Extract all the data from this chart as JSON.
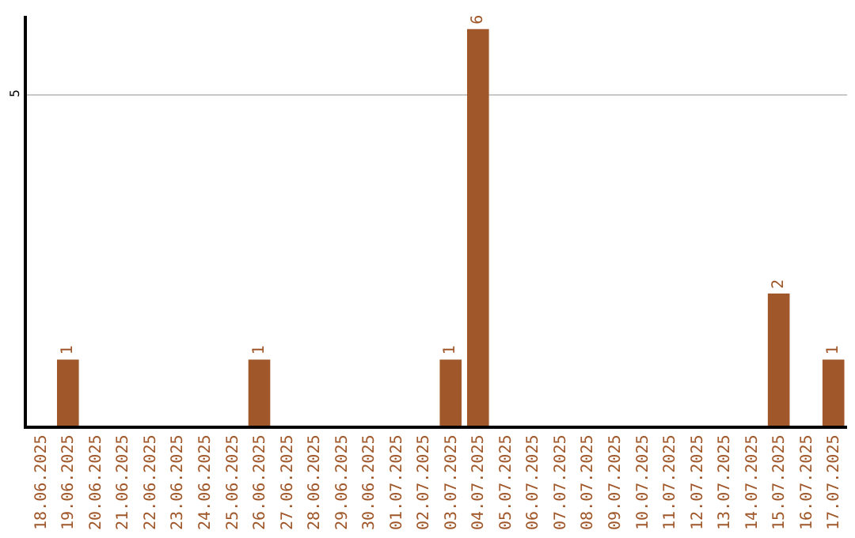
{
  "chart_data": {
    "type": "bar",
    "categories": [
      "18.06.2025",
      "19.06.2025",
      "20.06.2025",
      "21.06.2025",
      "22.06.2025",
      "23.06.2025",
      "24.06.2025",
      "25.06.2025",
      "26.06.2025",
      "27.06.2025",
      "28.06.2025",
      "29.06.2025",
      "30.06.2025",
      "01.07.2025",
      "02.07.2025",
      "03.07.2025",
      "04.07.2025",
      "05.07.2025",
      "06.07.2025",
      "07.07.2025",
      "08.07.2025",
      "09.07.2025",
      "10.07.2025",
      "11.07.2025",
      "12.07.2025",
      "13.07.2025",
      "14.07.2025",
      "15.07.2025",
      "16.07.2025",
      "17.07.2025"
    ],
    "values": [
      0,
      1,
      0,
      0,
      0,
      0,
      0,
      0,
      1,
      0,
      0,
      0,
      0,
      0,
      0,
      1,
      6,
      0,
      0,
      0,
      0,
      0,
      0,
      0,
      0,
      0,
      0,
      2,
      0,
      1
    ],
    "value_labels": [
      null,
      "1",
      null,
      null,
      null,
      null,
      null,
      null,
      "1",
      null,
      null,
      null,
      null,
      null,
      null,
      "1",
      "6",
      null,
      null,
      null,
      null,
      null,
      null,
      null,
      null,
      null,
      null,
      "2",
      null,
      "1"
    ],
    "color": "#a0582a",
    "ylim": [
      0,
      6.2
    ],
    "yticks": [
      5
    ],
    "grid": "y",
    "legend": false
  }
}
